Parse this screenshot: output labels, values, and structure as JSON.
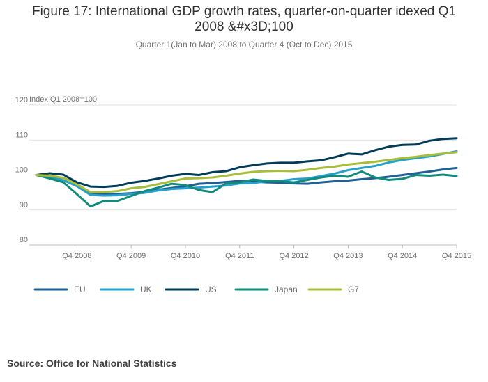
{
  "title_lines": [
    "Figure 17: International GDP growth rates, quarter-on-quarter idexed Q1",
    "2008 &#x3D;100"
  ],
  "subtitle": "Quarter 1(Jan to Mar) 2008 to Quarter 4 (Oct to Dec) 2015",
  "source": "Source: Office for National Statistics",
  "chart_data": {
    "type": "line",
    "title": "Figure 17: International GDP growth rates, quarter-on-quarter idexed Q1 2008 &#x3D;100",
    "ylabel": "Index Q1 2008=100",
    "xlabel": "",
    "ylim": [
      80,
      120
    ],
    "yticks": [
      80,
      90,
      100,
      110,
      120
    ],
    "grid": true,
    "legend_position": "bottom-left",
    "x_count": 32,
    "xtick_labels": [
      {
        "index": 3,
        "label": "Q4 2008"
      },
      {
        "index": 7,
        "label": "Q4 2009"
      },
      {
        "index": 11,
        "label": "Q4 2010"
      },
      {
        "index": 15,
        "label": "Q4 2011"
      },
      {
        "index": 19,
        "label": "Q4 2012"
      },
      {
        "index": 23,
        "label": "Q4 2013"
      },
      {
        "index": 27,
        "label": "Q4 2014"
      },
      {
        "index": 31,
        "label": "Q4 2015"
      }
    ],
    "series": [
      {
        "name": "EU",
        "color": "#206095",
        "values": [
          100.0,
          99.6,
          99.2,
          97.4,
          94.9,
          94.6,
          94.6,
          94.8,
          95.2,
          95.8,
          96.3,
          96.8,
          97.5,
          97.7,
          98.0,
          98.3,
          98.1,
          97.9,
          97.8,
          97.6,
          97.5,
          97.9,
          98.2,
          98.4,
          98.8,
          99.1,
          99.5,
          100.0,
          100.5,
          101.0,
          101.6,
          102.0
        ]
      },
      {
        "name": "UK",
        "color": "#27a0cc",
        "values": [
          100.0,
          99.4,
          98.5,
          96.8,
          94.3,
          94.1,
          94.2,
          94.6,
          94.9,
          95.6,
          96.0,
          96.2,
          96.4,
          96.7,
          97.0,
          97.6,
          97.7,
          98.2,
          98.3,
          98.8,
          99.0,
          99.7,
          100.4,
          101.4,
          102.0,
          102.6,
          103.6,
          104.3,
          104.8,
          105.3,
          106.0,
          106.8
        ]
      },
      {
        "name": "US",
        "color": "#003c57",
        "values": [
          100.0,
          100.5,
          100.1,
          97.9,
          96.7,
          96.6,
          96.9,
          97.8,
          98.3,
          99.0,
          99.8,
          100.3,
          100.0,
          100.8,
          101.1,
          102.2,
          102.8,
          103.3,
          103.5,
          103.5,
          103.9,
          104.2,
          105.1,
          106.1,
          105.9,
          107.1,
          108.1,
          108.6,
          108.7,
          109.8,
          110.3,
          110.5
        ]
      },
      {
        "name": "Japan",
        "color": "#118c7b",
        "values": [
          100.0,
          99.0,
          97.9,
          94.5,
          91.0,
          92.6,
          92.6,
          94.0,
          95.4,
          96.4,
          97.5,
          97.1,
          95.7,
          95.1,
          97.6,
          97.9,
          98.7,
          98.3,
          98.2,
          97.9,
          98.6,
          99.3,
          99.8,
          99.5,
          101.0,
          99.3,
          98.6,
          98.9,
          100.0,
          99.8,
          100.1,
          99.7
        ]
      },
      {
        "name": "G7",
        "color": "#a8bd3a",
        "values": [
          100.0,
          99.8,
          99.2,
          97.3,
          95.1,
          95.1,
          95.4,
          96.2,
          96.6,
          97.4,
          98.2,
          99.0,
          99.1,
          99.3,
          99.8,
          100.4,
          100.9,
          101.1,
          101.2,
          101.1,
          101.5,
          102.0,
          102.4,
          103.0,
          103.4,
          103.8,
          104.3,
          104.8,
          105.2,
          105.7,
          106.1,
          106.5
        ]
      }
    ]
  }
}
